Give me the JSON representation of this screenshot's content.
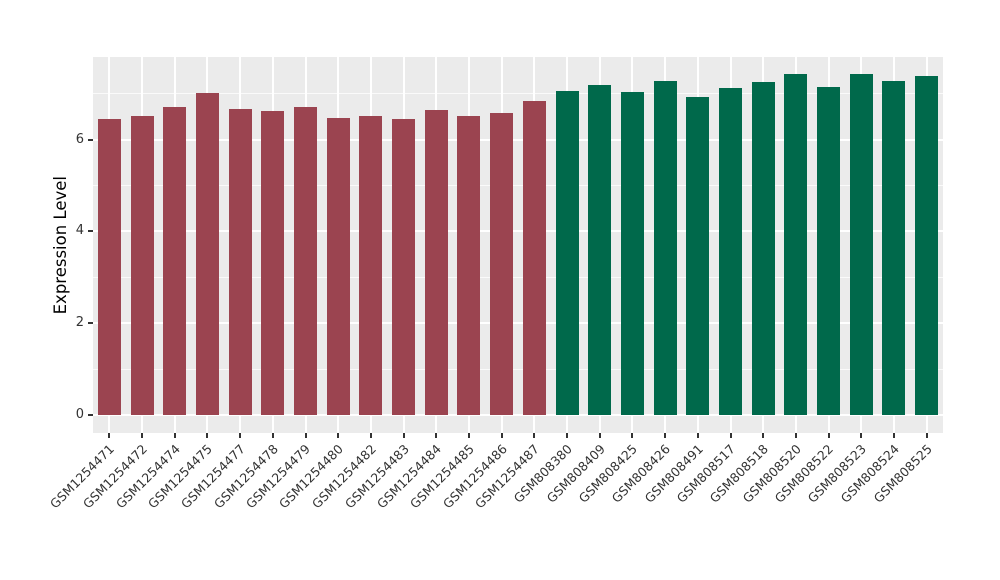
{
  "chart_data": {
    "type": "bar",
    "title": "",
    "xlabel": "",
    "ylabel": "Expression Level",
    "ylim": [
      0,
      7.8
    ],
    "yticks": [
      0,
      2,
      4,
      6
    ],
    "yminor": [
      1,
      3,
      5,
      7
    ],
    "grid": "ggplot-gray-panel-white-gridlines",
    "legend": "none",
    "categories": [
      "GSM1254471",
      "GSM1254472",
      "GSM1254474",
      "GSM1254475",
      "GSM1254477",
      "GSM1254478",
      "GSM1254479",
      "GSM1254480",
      "GSM1254482",
      "GSM1254483",
      "GSM1254484",
      "GSM1254485",
      "GSM1254486",
      "GSM1254487",
      "GSM808380",
      "GSM808409",
      "GSM808425",
      "GSM808426",
      "GSM808491",
      "GSM808517",
      "GSM808518",
      "GSM808520",
      "GSM808522",
      "GSM808523",
      "GSM808524",
      "GSM808525"
    ],
    "values": [
      6.44,
      6.51,
      6.71,
      7.01,
      6.66,
      6.63,
      6.72,
      6.48,
      6.51,
      6.46,
      6.64,
      6.52,
      6.57,
      6.84,
      7.06,
      7.2,
      7.03,
      7.28,
      6.92,
      7.12,
      7.26,
      7.43,
      7.15,
      7.42,
      7.28,
      7.39
    ],
    "groups": [
      "group1",
      "group1",
      "group1",
      "group1",
      "group1",
      "group1",
      "group1",
      "group1",
      "group1",
      "group1",
      "group1",
      "group1",
      "group1",
      "group1",
      "group2",
      "group2",
      "group2",
      "group2",
      "group2",
      "group2",
      "group2",
      "group2",
      "group2",
      "group2",
      "group2",
      "group2"
    ],
    "group_colors": {
      "group1": "#9B4450",
      "group2": "#00694B"
    }
  },
  "style": {
    "panel_bg": "#EBEBEB",
    "grid_color": "#FFFFFF",
    "tick_color": "#333333",
    "axis_text_color": "#333333",
    "axis_title_color": "#000000",
    "figure_bg": "#FFFFFF"
  }
}
